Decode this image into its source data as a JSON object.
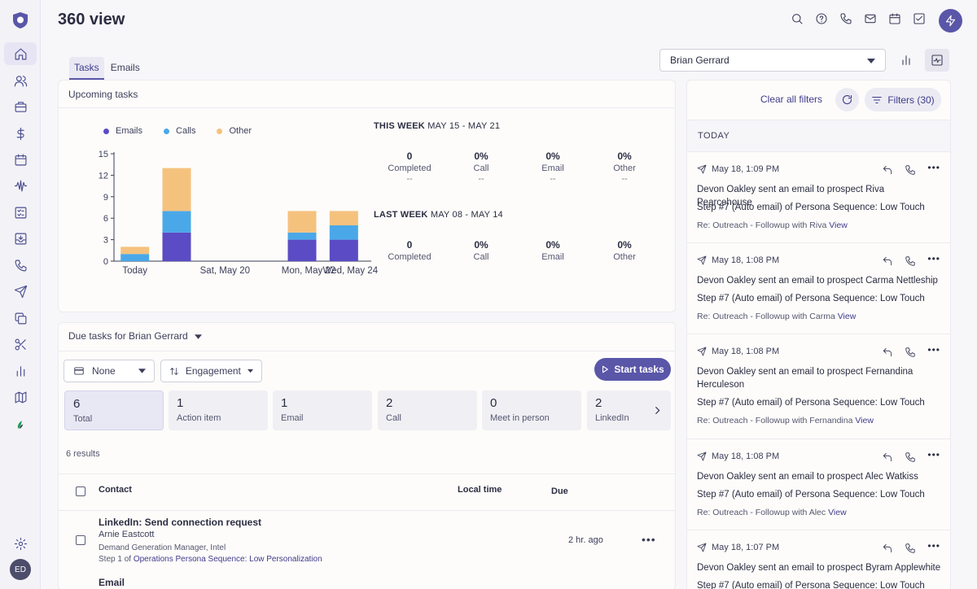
{
  "app": {
    "title": "360 view",
    "avatar_initials": "ED",
    "accent": "#5a56a8"
  },
  "sidebar": {
    "items": [
      {
        "icon": "home-icon"
      },
      {
        "icon": "people-icon"
      },
      {
        "icon": "briefcase-icon"
      },
      {
        "icon": "dollar-icon"
      },
      {
        "icon": "calendar-icon"
      },
      {
        "icon": "waveform-icon"
      },
      {
        "icon": "checklist-icon"
      },
      {
        "icon": "inbox-icon"
      },
      {
        "icon": "phone-icon"
      },
      {
        "icon": "send-icon"
      },
      {
        "icon": "copy-icon"
      },
      {
        "icon": "scissors-icon"
      },
      {
        "icon": "bar-chart-icon"
      },
      {
        "icon": "map-icon"
      },
      {
        "icon": "leaf-icon"
      }
    ]
  },
  "tabs": [
    "Tasks",
    "Emails"
  ],
  "owner_select": {
    "value": "Brian Gerrard"
  },
  "upcoming": {
    "title": "Upcoming tasks",
    "this_week_label": "THIS WEEK",
    "this_week_range": "MAY 15 - MAY 21",
    "last_week_label": "LAST WEEK",
    "last_week_range": "MAY 08 - MAY 14",
    "this_week_stats": [
      {
        "value": "0",
        "label": "Completed",
        "delta": "--"
      },
      {
        "value": "0%",
        "label": "Call",
        "delta": "--"
      },
      {
        "value": "0%",
        "label": "Email",
        "delta": "--"
      },
      {
        "value": "0%",
        "label": "Other",
        "delta": "--"
      }
    ],
    "last_week_stats": [
      {
        "value": "0",
        "label": "Completed"
      },
      {
        "value": "0%",
        "label": "Call"
      },
      {
        "value": "0%",
        "label": "Email"
      },
      {
        "value": "0%",
        "label": "Other"
      }
    ]
  },
  "chart_data": {
    "type": "bar",
    "stacked": true,
    "categories": [
      "Today",
      "",
      "Sat, May 20",
      "",
      "Mon, May 22",
      "Wed, May 24"
    ],
    "x_tick_labels": [
      "Today",
      "Sat, May 20",
      "Mon, May 22",
      "Wed, May 24"
    ],
    "series": [
      {
        "name": "Emails",
        "color": "#5b4bc4",
        "values": [
          0,
          4,
          0,
          0,
          3,
          3
        ]
      },
      {
        "name": "Calls",
        "color": "#4aa8e8",
        "values": [
          1,
          3,
          0,
          0,
          1,
          2
        ]
      },
      {
        "name": "Other",
        "color": "#f5c27e",
        "values": [
          1,
          6,
          0,
          0,
          3,
          2
        ]
      }
    ],
    "yticks": [
      0,
      3,
      6,
      9,
      12,
      15
    ],
    "ylim": [
      0,
      15
    ],
    "legend": "top-left"
  },
  "due": {
    "title": "Due tasks for Brian Gerrard",
    "group_select": "None",
    "sort_select": "Engagement",
    "start_label": "Start tasks",
    "tiles": [
      {
        "count": "6",
        "label": "Total"
      },
      {
        "count": "1",
        "label": "Action item"
      },
      {
        "count": "1",
        "label": "Email"
      },
      {
        "count": "2",
        "label": "Call"
      },
      {
        "count": "0",
        "label": "Meet in person"
      },
      {
        "count": "2",
        "label": "LinkedIn"
      }
    ],
    "results": "6 results",
    "columns": {
      "contact": "Contact",
      "local_time": "Local time",
      "due": "Due"
    },
    "rows": [
      {
        "title": "LinkedIn: Send connection request",
        "name": "Arnie Eastcott",
        "role": "Demand Generation Manager, Intel",
        "step_prefix": "Step 1 of ",
        "step_link": "Operations Persona Sequence: Low Personalization",
        "due": "2 hr. ago"
      },
      {
        "title": "Email"
      }
    ]
  },
  "activity": {
    "clear_label": "Clear all filters",
    "filters_label": "Filters (30)",
    "section": "TODAY",
    "items": [
      {
        "time": "May 18, 1:09 PM",
        "text": "Devon Oakley sent an email to prospect Riva Pearcehouse",
        "step": "Step #7 (Auto email) of Persona Sequence: Low Touch",
        "subject": "Re: Outreach - Followup with Riva",
        "view": "View"
      },
      {
        "time": "May 18, 1:08 PM",
        "text": "Devon Oakley sent an email to prospect Carma Nettleship",
        "step": "Step #7 (Auto email) of Persona Sequence: Low Touch",
        "subject": "Re: Outreach - Followup with Carma",
        "view": "View"
      },
      {
        "time": "May 18, 1:08 PM",
        "text": "Devon Oakley sent an email to prospect Fernandina Herculeson",
        "step": "Step #7 (Auto email) of Persona Sequence: Low Touch",
        "subject": "Re: Outreach - Followup with Fernandina",
        "view": "View"
      },
      {
        "time": "May 18, 1:08 PM",
        "text": "Devon Oakley sent an email to prospect Alec Watkiss",
        "step": "Step #7 (Auto email) of Persona Sequence: Low Touch",
        "subject": "Re: Outreach - Followup with Alec",
        "view": "View"
      },
      {
        "time": "May 18, 1:07 PM",
        "text": "Devon Oakley sent an email to prospect Byram Applewhite",
        "step": "Step #7 (Auto email) of Persona Sequence: Low Touch",
        "subject": "",
        "view": ""
      }
    ]
  }
}
